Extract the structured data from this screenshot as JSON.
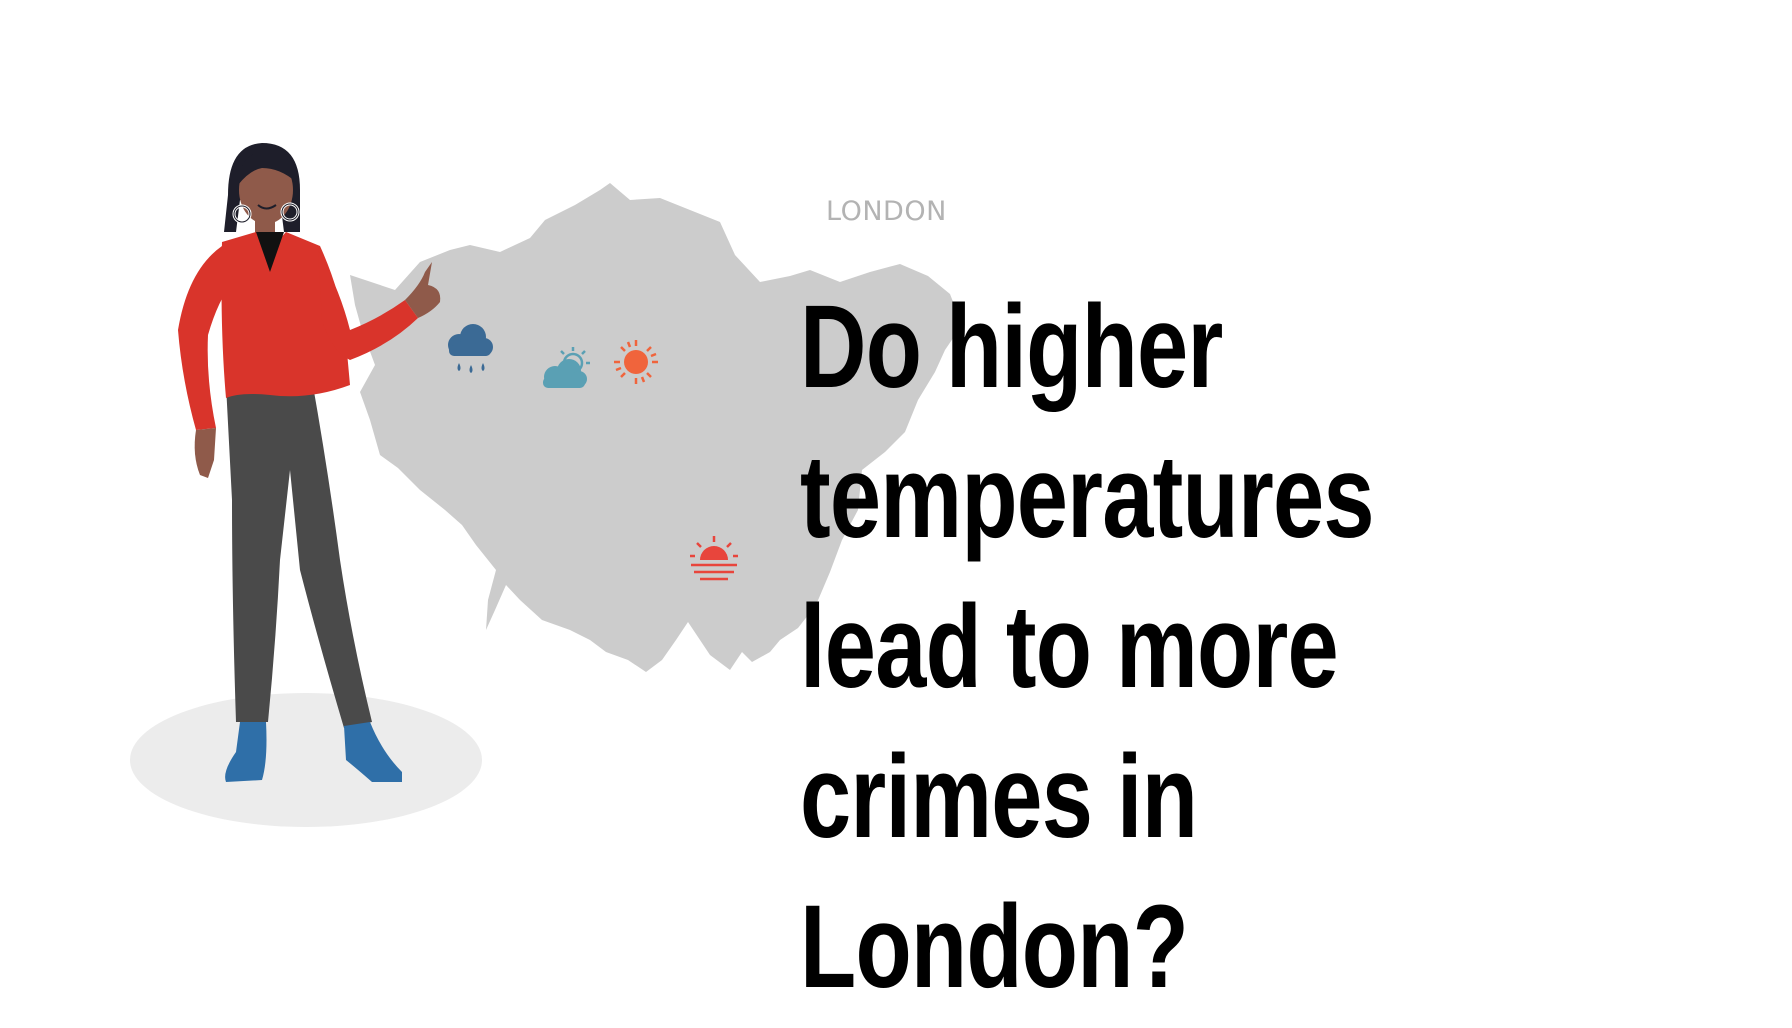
{
  "map": {
    "label": "LONDON",
    "fill": "#cccccc",
    "weather_icons": [
      "rain-cloud-icon",
      "partly-sunny-icon",
      "sun-icon",
      "sunset-icon"
    ]
  },
  "headline": {
    "text": "Do higher temperatures lead to more crimes in London?"
  },
  "colors": {
    "jacket": "#d9342b",
    "trousers": "#4a4a4a",
    "shoes": "#2f6fa8",
    "skin": "#8f5a4a",
    "ground_shadow": "#ececec",
    "sun": "#f0643c",
    "rain": "#3b6a95",
    "cloud": "#5aa0b4"
  }
}
